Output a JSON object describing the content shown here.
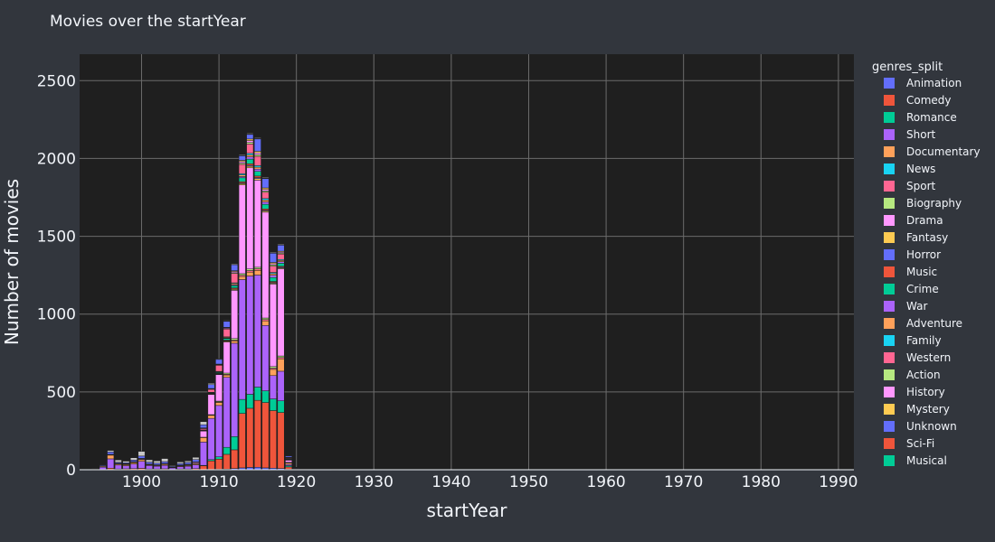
{
  "chart_data": {
    "type": "bar",
    "barmode": "stack",
    "title": "Movies over the startYear",
    "xlabel": "startYear",
    "ylabel": "Number of movies",
    "xlim": [
      1892,
      1992
    ],
    "ylim": [
      0,
      2670
    ],
    "x_ticks": [
      1900,
      1910,
      1920,
      1930,
      1940,
      1950,
      1960,
      1970,
      1980,
      1990
    ],
    "y_ticks": [
      0,
      500,
      1000,
      1500,
      2000,
      2500
    ],
    "grid": true,
    "legend_title": "genres_split",
    "legend_position": "right",
    "plot_background": "#1f1f1f",
    "paper_background": "#32363d",
    "x": [
      1894,
      1895,
      1896,
      1897,
      1898,
      1899,
      1900,
      1901,
      1902,
      1903,
      1904,
      1905,
      1906,
      1907,
      1908,
      1909,
      1910,
      1911,
      1912,
      1913,
      1914,
      1915,
      1916,
      1917,
      1918,
      1919,
      1920,
      1921,
      1925
    ],
    "series": [
      {
        "name": "Animation",
        "color": "#636efa",
        "values": [
          0,
          0,
          2,
          1,
          1,
          1,
          1,
          1,
          1,
          1,
          0,
          1,
          1,
          1,
          1,
          2,
          3,
          4,
          8,
          12,
          15,
          16,
          12,
          10,
          8,
          3,
          1,
          0,
          0
        ]
      },
      {
        "name": "Comedy",
        "color": "#EF553B",
        "values": [
          1,
          2,
          8,
          4,
          5,
          6,
          8,
          4,
          4,
          5,
          2,
          4,
          4,
          6,
          25,
          55,
          65,
          95,
          120,
          350,
          380,
          430,
          420,
          370,
          360,
          15,
          3,
          1,
          0
        ]
      },
      {
        "name": "Romance",
        "color": "#00cc96",
        "values": [
          0,
          0,
          0,
          0,
          0,
          0,
          0,
          0,
          0,
          0,
          0,
          0,
          0,
          0,
          2,
          8,
          15,
          45,
          85,
          90,
          90,
          85,
          75,
          75,
          75,
          8,
          1,
          0,
          0
        ]
      },
      {
        "name": "Short",
        "color": "#ab63fa",
        "values": [
          3,
          15,
          60,
          25,
          20,
          30,
          45,
          22,
          18,
          22,
          10,
          15,
          18,
          25,
          150,
          265,
          330,
          450,
          600,
          770,
          760,
          720,
          420,
          150,
          190,
          8,
          2,
          0,
          0
        ]
      },
      {
        "name": "Documentary",
        "color": "#FFA15A",
        "values": [
          1,
          5,
          25,
          8,
          8,
          10,
          12,
          6,
          5,
          8,
          3,
          5,
          6,
          8,
          30,
          20,
          20,
          15,
          15,
          20,
          25,
          30,
          30,
          40,
          80,
          10,
          2,
          0,
          1
        ]
      },
      {
        "name": "News",
        "color": "#19d3f3",
        "values": [
          0,
          0,
          0,
          0,
          0,
          0,
          0,
          0,
          0,
          0,
          0,
          0,
          0,
          0,
          0,
          0,
          0,
          0,
          0,
          0,
          0,
          0,
          0,
          0,
          0,
          0,
          0,
          0,
          0
        ]
      },
      {
        "name": "Sport",
        "color": "#FF6692",
        "values": [
          0,
          0,
          1,
          1,
          1,
          1,
          1,
          1,
          1,
          1,
          0,
          1,
          1,
          1,
          1,
          2,
          3,
          4,
          5,
          8,
          10,
          10,
          8,
          8,
          8,
          2,
          0,
          0,
          0
        ]
      },
      {
        "name": "Biography",
        "color": "#B6E880",
        "values": [
          0,
          0,
          0,
          0,
          0,
          0,
          0,
          0,
          0,
          0,
          0,
          0,
          0,
          0,
          0,
          2,
          5,
          8,
          10,
          10,
          10,
          10,
          10,
          10,
          10,
          2,
          0,
          0,
          0
        ]
      },
      {
        "name": "Drama",
        "color": "#FF97FF",
        "values": [
          0,
          0,
          2,
          2,
          3,
          3,
          5,
          2,
          2,
          2,
          1,
          3,
          4,
          8,
          40,
          130,
          170,
          200,
          310,
          570,
          650,
          560,
          680,
          530,
          560,
          15,
          2,
          0,
          0
        ]
      },
      {
        "name": "Fantasy",
        "color": "#FECB52",
        "values": [
          0,
          0,
          1,
          1,
          1,
          1,
          1,
          1,
          1,
          1,
          0,
          1,
          1,
          1,
          2,
          3,
          4,
          5,
          6,
          8,
          10,
          10,
          8,
          6,
          5,
          1,
          0,
          0,
          0
        ]
      },
      {
        "name": "Horror",
        "color": "#636efa",
        "values": [
          0,
          0,
          0,
          0,
          0,
          0,
          0,
          0,
          0,
          0,
          0,
          0,
          0,
          0,
          0,
          1,
          1,
          2,
          3,
          5,
          6,
          6,
          5,
          5,
          5,
          1,
          0,
          0,
          0
        ]
      },
      {
        "name": "Music",
        "color": "#EF553B",
        "values": [
          0,
          0,
          0,
          0,
          0,
          0,
          0,
          0,
          0,
          0,
          0,
          0,
          0,
          0,
          1,
          2,
          3,
          5,
          6,
          8,
          10,
          10,
          8,
          6,
          6,
          1,
          0,
          0,
          0
        ]
      },
      {
        "name": "Crime",
        "color": "#00cc96",
        "values": [
          0,
          0,
          0,
          0,
          0,
          0,
          0,
          0,
          0,
          0,
          0,
          0,
          0,
          0,
          2,
          4,
          6,
          10,
          15,
          25,
          30,
          30,
          30,
          25,
          20,
          3,
          0,
          0,
          0
        ]
      },
      {
        "name": "War",
        "color": "#ab63fa",
        "values": [
          0,
          0,
          0,
          0,
          0,
          0,
          0,
          0,
          0,
          0,
          0,
          0,
          0,
          0,
          0,
          1,
          2,
          3,
          5,
          8,
          15,
          15,
          15,
          15,
          10,
          1,
          0,
          0,
          0
        ]
      },
      {
        "name": "Adventure",
        "color": "#FFA15A",
        "values": [
          0,
          0,
          0,
          0,
          0,
          0,
          0,
          0,
          0,
          0,
          0,
          0,
          0,
          0,
          1,
          2,
          3,
          5,
          8,
          10,
          12,
          12,
          12,
          10,
          8,
          1,
          0,
          0,
          0
        ]
      },
      {
        "name": "Family",
        "color": "#19d3f3",
        "values": [
          0,
          0,
          0,
          0,
          0,
          0,
          0,
          0,
          0,
          0,
          0,
          0,
          0,
          0,
          1,
          1,
          2,
          3,
          5,
          8,
          10,
          10,
          10,
          8,
          6,
          1,
          0,
          0,
          0
        ]
      },
      {
        "name": "Western",
        "color": "#FF6692",
        "values": [
          0,
          0,
          0,
          0,
          0,
          0,
          0,
          0,
          0,
          0,
          0,
          0,
          0,
          0,
          10,
          20,
          40,
          50,
          60,
          60,
          60,
          60,
          40,
          40,
          35,
          5,
          1,
          0,
          0
        ]
      },
      {
        "name": "Action",
        "color": "#B6E880",
        "values": [
          0,
          0,
          0,
          0,
          0,
          0,
          0,
          0,
          0,
          0,
          0,
          0,
          0,
          0,
          1,
          1,
          2,
          3,
          5,
          8,
          10,
          10,
          8,
          8,
          6,
          1,
          0,
          0,
          0
        ]
      },
      {
        "name": "History",
        "color": "#FF97FF",
        "values": [
          0,
          0,
          0,
          0,
          0,
          0,
          0,
          0,
          0,
          0,
          0,
          0,
          0,
          0,
          1,
          2,
          3,
          5,
          8,
          10,
          12,
          12,
          10,
          8,
          6,
          1,
          0,
          0,
          0
        ]
      },
      {
        "name": "Mystery",
        "color": "#FECB52",
        "values": [
          0,
          0,
          0,
          0,
          0,
          0,
          0,
          0,
          0,
          0,
          0,
          0,
          0,
          0,
          1,
          1,
          2,
          3,
          5,
          8,
          10,
          10,
          10,
          8,
          6,
          1,
          0,
          0,
          0
        ]
      },
      {
        "name": "Unknown",
        "color": "#636efa",
        "values": [
          1,
          5,
          15,
          6,
          6,
          10,
          15,
          12,
          10,
          12,
          5,
          10,
          12,
          15,
          20,
          25,
          30,
          40,
          40,
          30,
          30,
          80,
          60,
          60,
          40,
          8,
          2,
          1,
          1
        ]
      },
      {
        "name": "Sci-Fi",
        "color": "#EF553B",
        "values": [
          0,
          0,
          0,
          0,
          0,
          0,
          0,
          0,
          0,
          0,
          0,
          0,
          0,
          0,
          0,
          0,
          0,
          1,
          1,
          2,
          2,
          2,
          2,
          2,
          2,
          0,
          0,
          0,
          0
        ]
      },
      {
        "name": "Musical",
        "color": "#00cc96",
        "values": [
          0,
          0,
          0,
          0,
          0,
          0,
          0,
          0,
          0,
          0,
          0,
          0,
          0,
          0,
          0,
          0,
          0,
          0,
          0,
          0,
          0,
          0,
          0,
          0,
          0,
          0,
          0,
          0,
          0
        ]
      },
      {
        "name": "",
        "color": "#c8c8c8",
        "values": [
          3,
          3,
          10,
          15,
          10,
          15,
          30,
          15,
          15,
          20,
          5,
          10,
          10,
          15,
          20,
          8,
          4,
          4,
          5,
          5,
          5,
          5,
          5,
          5,
          5,
          3,
          2,
          1,
          1
        ]
      }
    ]
  }
}
